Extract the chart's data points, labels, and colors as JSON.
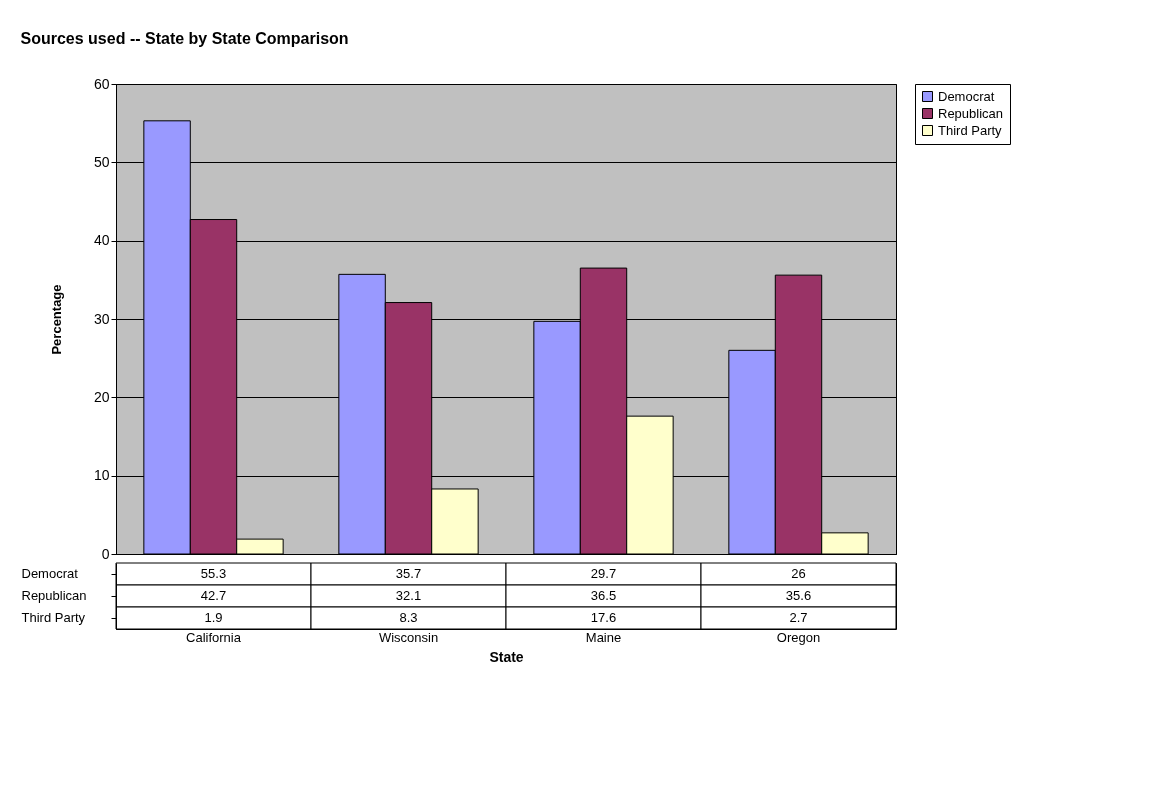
{
  "chart_data": {
    "type": "bar",
    "title": "Sources used -- State by State Comparison",
    "xlabel": "State",
    "ylabel": "Percentage",
    "categories": [
      "California",
      "Wisconsin",
      "Maine",
      "Oregon"
    ],
    "series": [
      {
        "name": "Democrat",
        "color": "#9999ff",
        "values": [
          55.3,
          35.7,
          29.7,
          26
        ]
      },
      {
        "name": "Republican",
        "color": "#993366",
        "values": [
          42.7,
          32.1,
          36.5,
          35.6
        ]
      },
      {
        "name": "Third Party",
        "color": "#ffffcc",
        "values": [
          1.9,
          8.3,
          17.6,
          2.7
        ]
      }
    ],
    "ylim": [
      0,
      60
    ],
    "yticks": [
      0,
      10,
      20,
      30,
      40,
      50,
      60
    ],
    "grid": "y",
    "legend": "right",
    "data_labels": true
  }
}
